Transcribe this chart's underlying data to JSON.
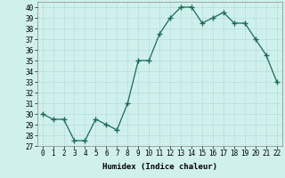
{
  "x": [
    0,
    1,
    2,
    3,
    4,
    5,
    6,
    7,
    8,
    9,
    10,
    11,
    12,
    13,
    14,
    15,
    16,
    17,
    18,
    19,
    20,
    21,
    22
  ],
  "y": [
    30,
    29.5,
    29.5,
    27.5,
    27.5,
    29.5,
    29,
    28.5,
    31,
    35,
    35,
    37.5,
    39,
    40,
    40,
    38.5,
    39,
    39.5,
    38.5,
    38.5,
    37,
    35.5,
    33
  ],
  "line_color": "#1a6b5a",
  "marker": "+",
  "marker_size": 4,
  "bg_color": "#cff0eb",
  "grid_color": "#b8ddd8",
  "xlabel": "Humidex (Indice chaleur)",
  "xlim": [
    -0.5,
    22.5
  ],
  "ylim": [
    27,
    40.5
  ],
  "yticks": [
    27,
    28,
    29,
    30,
    31,
    32,
    33,
    34,
    35,
    36,
    37,
    38,
    39,
    40
  ],
  "xticks": [
    0,
    1,
    2,
    3,
    4,
    5,
    6,
    7,
    8,
    9,
    10,
    11,
    12,
    13,
    14,
    15,
    16,
    17,
    18,
    19,
    20,
    21,
    22
  ],
  "label_fontsize": 6.5,
  "tick_fontsize": 5.5
}
